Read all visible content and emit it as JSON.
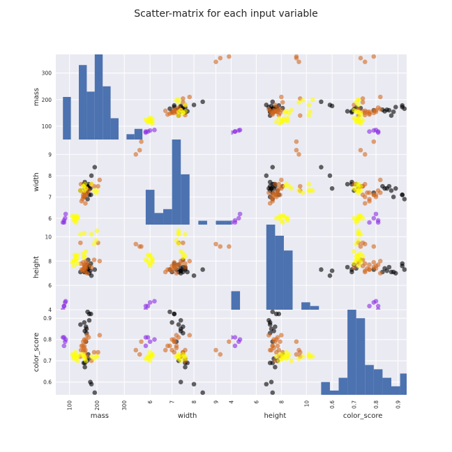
{
  "figure": {
    "title": "Scatter-matrix for each input variable"
  },
  "chart_data": {
    "type": "scatter",
    "variables": [
      "mass",
      "width",
      "height",
      "color_score"
    ],
    "ranges": {
      "mass": [
        50,
        370
      ],
      "width": [
        5.7,
        9.7
      ],
      "height": [
        4.0,
        11.0
      ],
      "color_score": [
        0.54,
        0.94
      ]
    },
    "ticks": {
      "mass": [
        100,
        200,
        300
      ],
      "width": [
        6,
        7,
        8,
        9
      ],
      "height": [
        4,
        6,
        8,
        10
      ],
      "color_score": [
        0.6,
        0.7,
        0.8,
        0.9
      ]
    },
    "grid": true,
    "class_colors": [
      "#8a2be2",
      "#000000",
      "#d2691e",
      "#ffff00"
    ],
    "points": [
      [
        86,
        6.2,
        4.7,
        0.8,
        0
      ],
      [
        84,
        6.0,
        4.6,
        0.79,
        0
      ],
      [
        80,
        5.8,
        4.3,
        0.77,
        0
      ],
      [
        80,
        5.9,
        4.3,
        0.81,
        0
      ],
      [
        76,
        5.8,
        4.0,
        0.81,
        0
      ],
      [
        192,
        8.4,
        7.3,
        0.55,
        1
      ],
      [
        180,
        8.0,
        6.8,
        0.59,
        1
      ],
      [
        176,
        7.4,
        7.2,
        0.6,
        1
      ],
      [
        178,
        7.1,
        7.8,
        0.92,
        1
      ],
      [
        172,
        7.4,
        7.0,
        0.89,
        1
      ],
      [
        166,
        6.9,
        7.3,
        0.93,
        1
      ],
      [
        172,
        7.1,
        7.6,
        0.92,
        1
      ],
      [
        154,
        7.0,
        7.1,
        0.88,
        1
      ],
      [
        164,
        7.3,
        7.7,
        0.7,
        1
      ],
      [
        152,
        7.6,
        7.3,
        0.69,
        1
      ],
      [
        156,
        7.7,
        7.1,
        0.69,
        1
      ],
      [
        156,
        7.6,
        7.5,
        0.67,
        1
      ],
      [
        168,
        7.5,
        8.1,
        0.73,
        1
      ],
      [
        162,
        7.5,
        7.1,
        0.83,
        1
      ],
      [
        162,
        7.4,
        7.2,
        0.85,
        1
      ],
      [
        160,
        7.5,
        7.5,
        0.86,
        1
      ],
      [
        156,
        7.4,
        7.4,
        0.84,
        1
      ],
      [
        140,
        7.3,
        7.1,
        0.87,
        1
      ],
      [
        170,
        7.6,
        7.4,
        0.71,
        1
      ],
      [
        160,
        7.2,
        7.3,
        0.79,
        1
      ],
      [
        342,
        9.0,
        9.4,
        0.75,
        2
      ],
      [
        356,
        9.2,
        9.2,
        0.73,
        2
      ],
      [
        362,
        9.6,
        9.2,
        0.79,
        2
      ],
      [
        204,
        7.5,
        9.5,
        0.74,
        2
      ],
      [
        140,
        7.3,
        9.5,
        0.72,
        2
      ],
      [
        160,
        7.1,
        7.4,
        0.8,
        2
      ],
      [
        158,
        7.1,
        7.5,
        0.79,
        2
      ],
      [
        210,
        7.8,
        8.0,
        0.82,
        2
      ],
      [
        164,
        7.2,
        7.0,
        0.82,
        2
      ],
      [
        190,
        7.5,
        8.1,
        0.74,
        2
      ],
      [
        142,
        7.6,
        7.8,
        0.75,
        2
      ],
      [
        150,
        7.1,
        7.9,
        0.79,
        2
      ],
      [
        160,
        7.4,
        8.0,
        0.72,
        2
      ],
      [
        154,
        7.2,
        7.7,
        0.77,
        2
      ],
      [
        158,
        6.7,
        7.1,
        0.75,
        2
      ],
      [
        144,
        6.8,
        7.3,
        0.77,
        2
      ],
      [
        154,
        7.0,
        7.6,
        0.8,
        2
      ],
      [
        180,
        7.6,
        7.5,
        0.7,
        2
      ],
      [
        154,
        7.2,
        7.4,
        0.76,
        2
      ],
      [
        170,
        7.3,
        7.7,
        0.81,
        2
      ],
      [
        162,
        7.4,
        7.8,
        0.72,
        2
      ],
      [
        150,
        7.0,
        7.2,
        0.75,
        2
      ],
      [
        148,
        6.9,
        7.3,
        0.77,
        2
      ],
      [
        156,
        7.1,
        7.6,
        0.74,
        2
      ],
      [
        154,
        7.3,
        10.3,
        0.72,
        3
      ],
      [
        180,
        7.6,
        10.2,
        0.72,
        3
      ],
      [
        200,
        7.3,
        10.5,
        0.72,
        3
      ],
      [
        198,
        7.2,
        9.7,
        0.72,
        3
      ],
      [
        190,
        7.3,
        9.4,
        0.71,
        3
      ],
      [
        140,
        7.3,
        10.2,
        0.73,
        3
      ],
      [
        130,
        6.0,
        8.5,
        0.72,
        3
      ],
      [
        128,
        6.1,
        8.2,
        0.72,
        3
      ],
      [
        116,
        5.9,
        8.0,
        0.71,
        3
      ],
      [
        116,
        6.0,
        7.6,
        0.72,
        3
      ],
      [
        118,
        6.1,
        8.1,
        0.73,
        3
      ],
      [
        120,
        5.9,
        8.5,
        0.72,
        3
      ],
      [
        130,
        6.0,
        7.8,
        0.7,
        3
      ],
      [
        122,
        6.0,
        8.4,
        0.74,
        3
      ],
      [
        110,
        6.1,
        7.9,
        0.73,
        3
      ],
      [
        152,
        7.5,
        8.3,
        0.72,
        3
      ],
      [
        156,
        7.6,
        8.4,
        0.71,
        3
      ],
      [
        160,
        7.4,
        8.8,
        0.7,
        3
      ],
      [
        150,
        7.5,
        8.6,
        0.73,
        3
      ],
      [
        124,
        5.8,
        8.1,
        0.71,
        3
      ]
    ],
    "histograms": [
      {
        "variable": "mass",
        "bin_edges": [
          76,
          105,
          134,
          163,
          192,
          221,
          250,
          279,
          308,
          337,
          366
        ],
        "counts": [
          8,
          0,
          14,
          9,
          16,
          10,
          4,
          0,
          1,
          2
        ]
      },
      {
        "variable": "width",
        "bin_edges": [
          5.8,
          6.2,
          6.6,
          7.0,
          7.4,
          7.8,
          8.2,
          8.6,
          9.0,
          9.4,
          9.8
        ],
        "counts": [
          9,
          3,
          4,
          22,
          13,
          0,
          1,
          0,
          1,
          1
        ]
      },
      {
        "variable": "height",
        "bin_edges": [
          4.0,
          4.7,
          5.4,
          6.1,
          6.8,
          7.5,
          8.2,
          8.9,
          9.6,
          10.3,
          11.0
        ],
        "counts": [
          5,
          0,
          0,
          0,
          23,
          20,
          16,
          0,
          2,
          1
        ]
      },
      {
        "variable": "color_score",
        "bin_edges": [
          0.55,
          0.59,
          0.63,
          0.67,
          0.71,
          0.75,
          0.79,
          0.83,
          0.87,
          0.91,
          0.95
        ],
        "counts": [
          3,
          1,
          4,
          20,
          18,
          7,
          6,
          4,
          2,
          5
        ]
      }
    ]
  }
}
